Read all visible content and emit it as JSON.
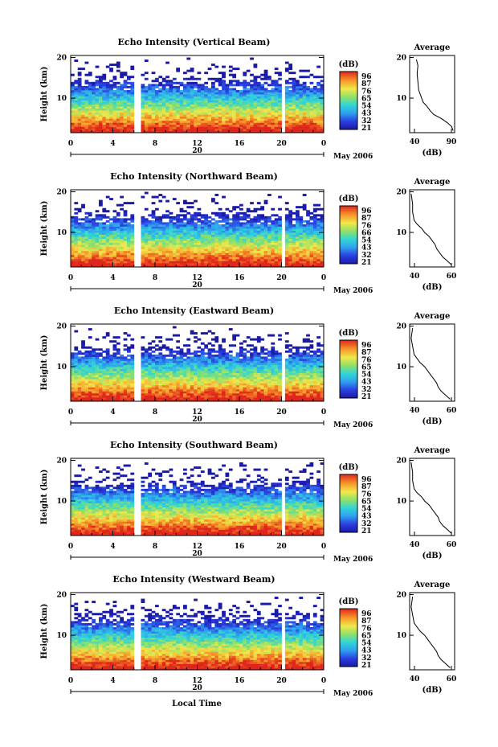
{
  "figure": {
    "xlabel": "Local Time"
  },
  "chart_data": [
    {
      "type": "heatmap",
      "title": "Echo Intensity (Vertical Beam)",
      "ylabel": "Height (km)",
      "yticks": [
        10,
        20
      ],
      "ylim": [
        1.5,
        20.5
      ],
      "xtick_labels": [
        "0",
        "4",
        "8",
        "12",
        "16",
        "20",
        "0"
      ],
      "date_label": "20",
      "month_label": "May 2006",
      "colorbar": {
        "unit": "(dB)",
        "labels": [
          "96",
          "87",
          "76",
          "65",
          "54",
          "43",
          "32",
          "21"
        ]
      },
      "data_gaps_hours": [
        [
          5.9,
          6.6
        ],
        [
          20.1,
          20.3
        ]
      ],
      "profile": {
        "title": "Average",
        "xlabel": "(dB)",
        "xticks": [
          "40",
          "90"
        ],
        "xlim": [
          30,
          90
        ],
        "yticks": [
          10,
          20
        ],
        "points": [
          [
            88,
            2
          ],
          [
            86,
            3
          ],
          [
            80,
            4
          ],
          [
            72,
            5
          ],
          [
            62,
            6
          ],
          [
            57,
            7
          ],
          [
            53,
            8
          ],
          [
            48,
            9
          ],
          [
            46,
            10
          ],
          [
            44,
            11
          ],
          [
            42,
            12
          ],
          [
            41,
            14
          ],
          [
            40,
            16
          ],
          [
            41,
            18
          ],
          [
            39,
            19.5
          ]
        ]
      }
    },
    {
      "type": "heatmap",
      "title": "Echo Intensity (Northward Beam)",
      "ylabel": "Height (km)",
      "yticks": [
        10,
        20
      ],
      "ylim": [
        1.5,
        20.5
      ],
      "xtick_labels": [
        "0",
        "4",
        "8",
        "12",
        "16",
        "20",
        "0"
      ],
      "date_label": "20",
      "month_label": "May 2006",
      "colorbar": {
        "unit": "(dB)",
        "labels": [
          "96",
          "87",
          "76",
          "66",
          "54",
          "43",
          "32",
          "21"
        ]
      },
      "data_gaps_hours": [
        [
          5.9,
          6.6
        ],
        [
          20.1,
          20.3
        ]
      ],
      "profile": {
        "title": "Average",
        "xlabel": "(dB)",
        "xticks": [
          "40",
          "60"
        ],
        "xlim": [
          35,
          65
        ],
        "yticks": [
          10,
          20
        ],
        "points": [
          [
            63,
            2
          ],
          [
            60,
            3
          ],
          [
            57,
            4
          ],
          [
            55,
            5
          ],
          [
            53,
            6
          ],
          [
            52,
            7
          ],
          [
            50,
            8
          ],
          [
            48,
            9
          ],
          [
            45,
            10
          ],
          [
            43,
            11
          ],
          [
            40,
            12
          ],
          [
            38,
            13
          ],
          [
            37,
            15
          ],
          [
            37,
            17
          ],
          [
            36,
            19.5
          ]
        ]
      }
    },
    {
      "type": "heatmap",
      "title": "Echo Intensity (Eastward Beam)",
      "ylabel": "Height (km)",
      "yticks": [
        10,
        20
      ],
      "ylim": [
        1.5,
        20.5
      ],
      "xtick_labels": [
        "0",
        "4",
        "8",
        "12",
        "16",
        "20",
        "0"
      ],
      "date_label": "20",
      "month_label": "May 2006",
      "colorbar": {
        "unit": "(dB)",
        "labels": [
          "96",
          "87",
          "76",
          "65",
          "54",
          "43",
          "32",
          "21"
        ]
      },
      "data_gaps_hours": [
        [
          5.9,
          6.6
        ],
        [
          20.1,
          20.3
        ]
      ],
      "profile": {
        "title": "Average",
        "xlabel": "(dB)",
        "xticks": [
          "40",
          "60"
        ],
        "xlim": [
          35,
          65
        ],
        "yticks": [
          10,
          20
        ],
        "points": [
          [
            62,
            2
          ],
          [
            59,
            3
          ],
          [
            56,
            4
          ],
          [
            54,
            5
          ],
          [
            53,
            6
          ],
          [
            51,
            7
          ],
          [
            49,
            8
          ],
          [
            47,
            9
          ],
          [
            45,
            10
          ],
          [
            42,
            11
          ],
          [
            40,
            12
          ],
          [
            38,
            13
          ],
          [
            37,
            15
          ],
          [
            36,
            17
          ],
          [
            37,
            19.5
          ]
        ]
      }
    },
    {
      "type": "heatmap",
      "title": "Echo Intensity (Southward Beam)",
      "ylabel": "Height (km)",
      "yticks": [
        10,
        20
      ],
      "ylim": [
        1.5,
        20.5
      ],
      "xtick_labels": [
        "0",
        "4",
        "8",
        "12",
        "16",
        "20",
        "0"
      ],
      "date_label": "20",
      "month_label": "May 2006",
      "colorbar": {
        "unit": "(dB)",
        "labels": [
          "96",
          "87",
          "76",
          "65",
          "54",
          "43",
          "32",
          "21"
        ]
      },
      "data_gaps_hours": [
        [
          5.9,
          6.6
        ],
        [
          20.1,
          20.3
        ]
      ],
      "profile": {
        "title": "Average",
        "xlabel": "(dB)",
        "xticks": [
          "40",
          "60"
        ],
        "xlim": [
          35,
          65
        ],
        "yticks": [
          10,
          20
        ],
        "points": [
          [
            63,
            2
          ],
          [
            60,
            3
          ],
          [
            57,
            4
          ],
          [
            55,
            5
          ],
          [
            54,
            6
          ],
          [
            52,
            7
          ],
          [
            50,
            8
          ],
          [
            48,
            9
          ],
          [
            45,
            10
          ],
          [
            43,
            11
          ],
          [
            40,
            12
          ],
          [
            38,
            13
          ],
          [
            37,
            15
          ],
          [
            37,
            17
          ],
          [
            36,
            19.5
          ]
        ]
      }
    },
    {
      "type": "heatmap",
      "title": "Echo Intensity (Westward Beam)",
      "ylabel": "Height (km)",
      "yticks": [
        10,
        20
      ],
      "ylim": [
        1.5,
        20.5
      ],
      "xtick_labels": [
        "0",
        "4",
        "8",
        "12",
        "16",
        "20",
        "0"
      ],
      "date_label": "20",
      "month_label": "May 2006",
      "colorbar": {
        "unit": "(dB)",
        "labels": [
          "96",
          "87",
          "76",
          "65",
          "54",
          "43",
          "32",
          "21"
        ]
      },
      "data_gaps_hours": [
        [
          5.9,
          6.6
        ],
        [
          20.1,
          20.3
        ]
      ],
      "profile": {
        "title": "Average",
        "xlabel": "(dB)",
        "xticks": [
          "40",
          "60"
        ],
        "xlim": [
          35,
          65
        ],
        "yticks": [
          10,
          20
        ],
        "points": [
          [
            62,
            2
          ],
          [
            59,
            3
          ],
          [
            56,
            4
          ],
          [
            54,
            5
          ],
          [
            53,
            6
          ],
          [
            51,
            7
          ],
          [
            49,
            8
          ],
          [
            47,
            9
          ],
          [
            45,
            10
          ],
          [
            42,
            11
          ],
          [
            40,
            12
          ],
          [
            38,
            13
          ],
          [
            37,
            15
          ],
          [
            36,
            17
          ],
          [
            37,
            19.5
          ]
        ]
      }
    }
  ]
}
